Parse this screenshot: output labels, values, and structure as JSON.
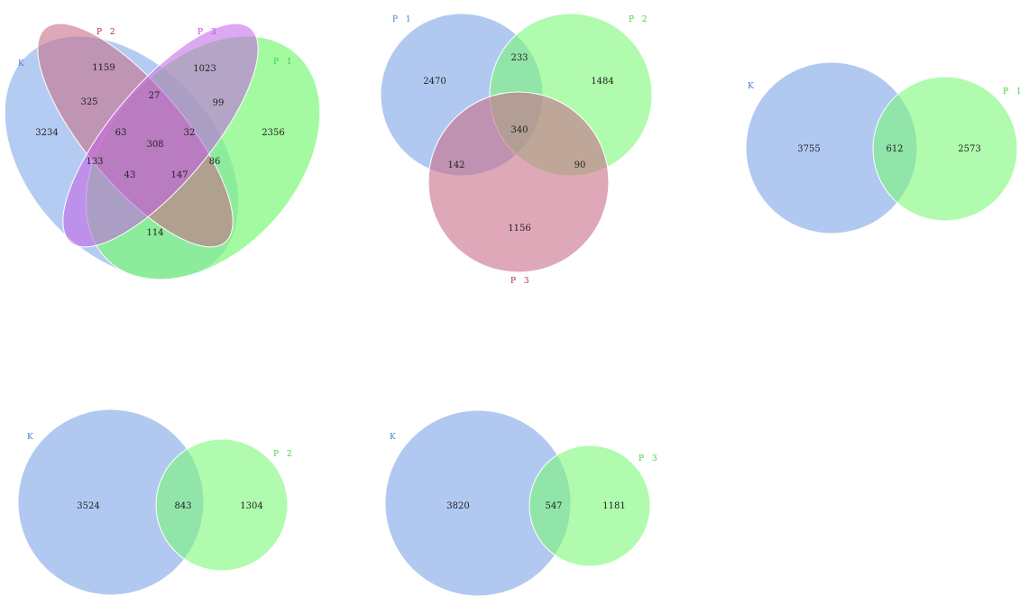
{
  "colors": {
    "K": "#a8c3f0",
    "P 1": "#7cf878",
    "P 2": "#d8909e",
    "P 3": "#d98cf2",
    "p1_blue": "#a8c3f0",
    "p2_green": "#7cf878",
    "p3_pink": "#d8909e",
    "lbl_K": "#4f78d0",
    "lbl_P1": "#3ed43a",
    "lbl_P2": "#b4283e",
    "lbl_P3": "#b43ee8"
  },
  "venn4": {
    "labels": {
      "K": "K",
      "P2": "P 2",
      "P3": "P 3",
      "P1": "P 1"
    },
    "counts": {
      "K": "3234",
      "P2": "1159",
      "P3": "1023",
      "P1": "2356",
      "K_P2": "325",
      "P2_P3": "27",
      "P3_P1": "99",
      "K_P3": "133",
      "K_P2_P3": "63",
      "P2_P3_P1": "32",
      "K_P2_P3_P1": "308",
      "K_P1": "114",
      "P2_P1": "86",
      "K_P3_P1": "43",
      "K_P2_P1": "147"
    }
  },
  "venn3": {
    "labels": {
      "P1": "P 1",
      "P2": "P 2",
      "P3": "P 3"
    },
    "counts": {
      "P1": "2470",
      "P2": "1484",
      "P1_P2": "233",
      "P1_P2_P3": "340",
      "P1_P3": "142",
      "P2_P3": "90",
      "P3": "1156"
    }
  },
  "venn2_K_P1": {
    "labels": {
      "a": "K",
      "b": "P 1"
    },
    "counts": {
      "a": "3755",
      "ab": "612",
      "b": "2573"
    }
  },
  "venn2_K_P2": {
    "labels": {
      "a": "K",
      "b": "P 2"
    },
    "counts": {
      "a": "3524",
      "ab": "843",
      "b": "1304"
    }
  },
  "venn2_K_P3": {
    "labels": {
      "a": "K",
      "b": "P 3"
    },
    "counts": {
      "a": "3820",
      "ab": "547",
      "b": "1181"
    }
  }
}
